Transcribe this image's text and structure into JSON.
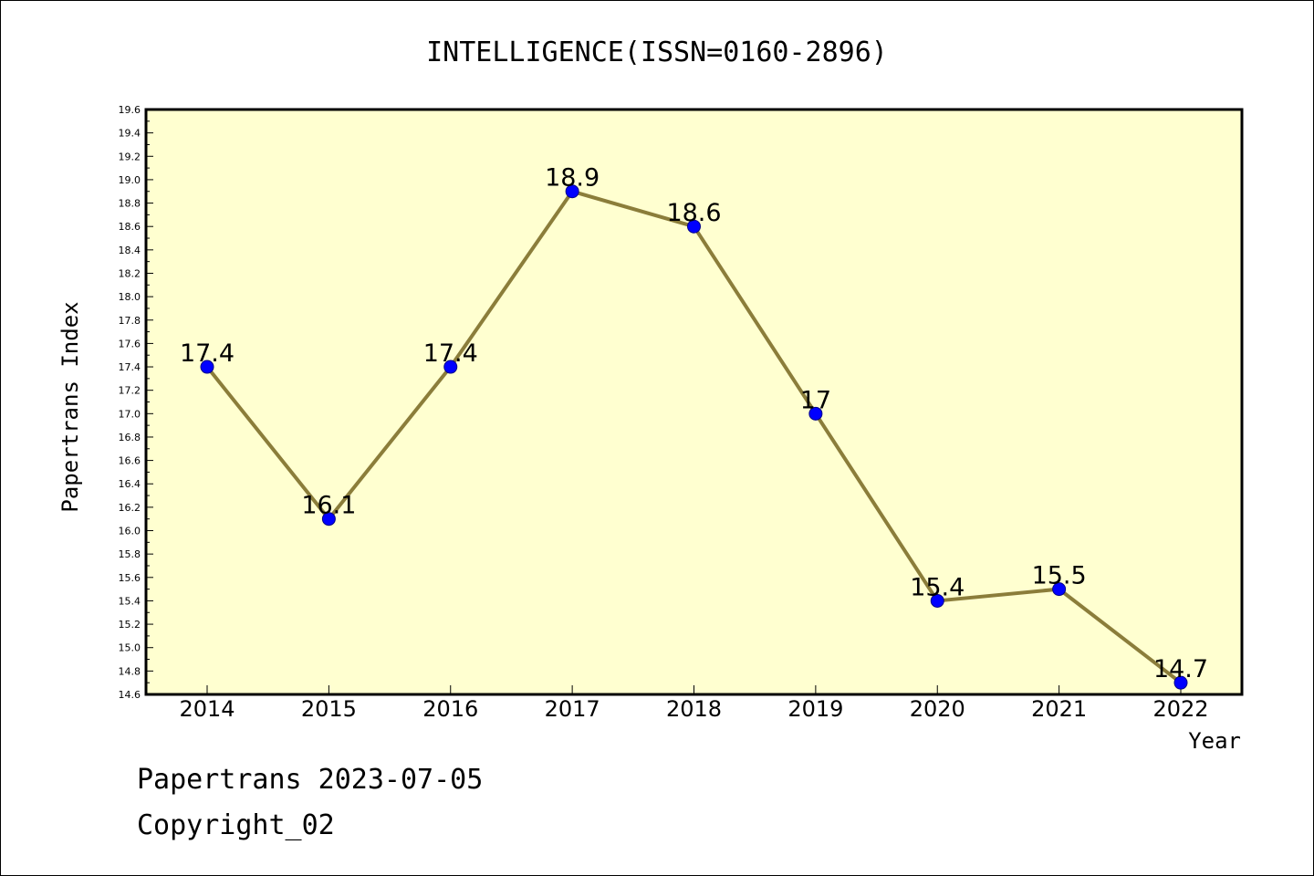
{
  "chart_data": {
    "type": "line",
    "title": "INTELLIGENCE(ISSN=0160-2896)",
    "xlabel": "Year",
    "ylabel": "Papertrans Index",
    "categories": [
      "2014",
      "2015",
      "2016",
      "2017",
      "2018",
      "2019",
      "2020",
      "2021",
      "2022"
    ],
    "series": [
      {
        "values": [
          17.4,
          16.1,
          17.4,
          18.9,
          18.6,
          17.0,
          15.4,
          15.5,
          14.7
        ],
        "data_labels": [
          "17.4",
          "16.1",
          "17.4",
          "18.9",
          "18.6",
          "17",
          "15.4",
          "15.5",
          "14.7"
        ]
      }
    ],
    "ylim": [
      14.6,
      19.6
    ],
    "ymajor_step": 0.2,
    "yticks": [
      "14.6",
      "14.8",
      "15.0",
      "15.2",
      "15.4",
      "15.6",
      "15.8",
      "16.0",
      "16.2",
      "16.4",
      "16.6",
      "16.8",
      "17.0",
      "17.2",
      "17.4",
      "17.6",
      "17.8",
      "18.0",
      "18.2",
      "18.4",
      "18.6",
      "18.8",
      "19.0",
      "19.2",
      "19.4",
      "19.6"
    ],
    "grid": false,
    "legend": "none",
    "colors": {
      "plot_background": "#ffffd0",
      "line": "#8b7d3a",
      "marker": "#0000ff",
      "marker_edge": "#00008b"
    }
  },
  "footer": {
    "line1": "Papertrans 2023-07-05",
    "line2": "Copyright_02"
  }
}
